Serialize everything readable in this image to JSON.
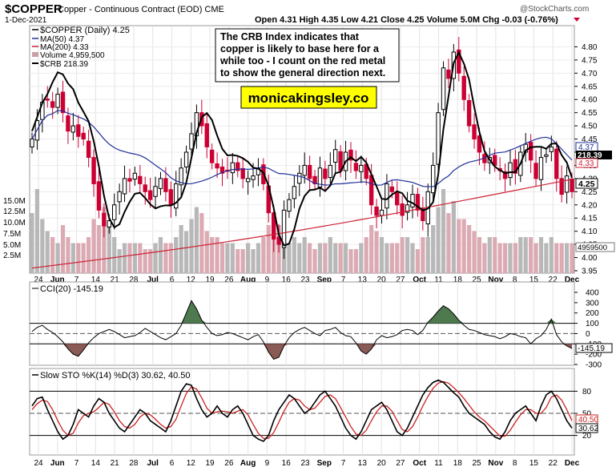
{
  "header": {
    "symbol": "$COPPER",
    "description": "Copper - Continuous Contract (EOD)  CME",
    "date": "1-Dec-2021",
    "ohlc": "Open 4.31  High 4.35  Low 4.21  Close 4.25  Volume 5.0M  Chg -0.03 (-0.76%)",
    "watermark": "@StockCharts.com"
  },
  "legend": {
    "main": "$COPPER (Daily) 4.25",
    "ma50": "MA(50) 4.37",
    "ma200": "MA(200) 4.33",
    "volume": "Volume 4,959,500",
    "crb": "$CRB 218.39"
  },
  "annotation": {
    "text": "The CRB Index indicates that copper is likely to base here for a while too - I count on the red metal to show the general direction next.",
    "line1": "The CRB Index indicates that",
    "line2": "copper is likely to base here for a",
    "line3": "while too - I count on the red metal",
    "line4": "to show the general direction next.",
    "url": "monicakingsley.co"
  },
  "colors": {
    "up": "#000000",
    "down": "#cc0033",
    "ma50": "#1f2f99",
    "ma200": "#cc2233",
    "crb": "#000000",
    "cci_pos": "#4f7a4f",
    "cci_neg": "#8a5a55",
    "sto_k": "#000000",
    "sto_d": "#cc2222",
    "highlight": "#ffff00"
  },
  "chart_data": [
    {
      "type": "candlestick",
      "title": "$COPPER (Daily) 4.25",
      "x_labels": [
        "24",
        "Jun",
        "7",
        "14",
        "21",
        "28",
        "Jul",
        "6",
        "12",
        "19",
        "26",
        "Aug",
        "9",
        "16",
        "23",
        "Sep",
        "7",
        "13",
        "20",
        "27",
        "Oct",
        "11",
        "18",
        "25",
        "Nov",
        "8",
        "15",
        "22",
        "Dec"
      ],
      "ylim": [
        3.95,
        4.85
      ],
      "y_ticks": [
        "3.95",
        "4.00",
        "4.05",
        "4.10",
        "4.15",
        "4.20",
        "4.25",
        "4.30",
        "4.35",
        "4.40",
        "4.45",
        "4.50",
        "4.55",
        "4.60",
        "4.65",
        "4.70",
        "4.75",
        "4.80"
      ],
      "close": [
        4.45,
        4.52,
        4.59,
        4.6,
        4.57,
        4.62,
        4.55,
        4.48,
        4.5,
        4.46,
        4.45,
        4.38,
        4.28,
        4.18,
        4.12,
        4.14,
        4.2,
        4.25,
        4.3,
        4.29,
        4.32,
        4.28,
        4.25,
        4.22,
        4.27,
        4.3,
        4.25,
        4.2,
        4.28,
        4.34,
        4.4,
        4.47,
        4.55,
        4.5,
        4.42,
        4.36,
        4.34,
        4.32,
        4.33,
        4.36,
        4.33,
        4.3,
        4.3,
        4.31,
        4.34,
        4.28,
        4.17,
        4.07,
        4.05,
        4.18,
        4.22,
        4.27,
        4.32,
        4.35,
        4.3,
        4.28,
        4.34,
        4.3,
        4.35,
        4.41,
        4.33,
        4.4,
        4.37,
        4.33,
        4.35,
        4.3,
        4.2,
        4.16,
        4.18,
        4.28,
        4.25,
        4.2,
        4.16,
        4.2,
        4.24,
        4.18,
        4.14,
        4.25,
        4.35,
        4.55,
        4.72,
        4.68,
        4.78,
        4.7,
        4.6,
        4.5,
        4.45,
        4.4,
        4.36,
        4.38,
        4.35,
        4.33,
        4.3,
        4.36,
        4.32,
        4.4,
        4.43,
        4.37,
        4.3,
        4.38,
        4.39,
        4.42,
        4.3,
        4.24,
        4.31,
        4.25
      ],
      "last_price_label": "4.25",
      "ma50_label": "4.37",
      "ma200_label": "4.33",
      "crb_label": "218.39",
      "volume_axis": [
        "15.0M",
        "12.5M",
        "10.0M",
        "7.5M",
        "5.0M",
        "2.5M"
      ],
      "volume_label": "4959500",
      "volume": [
        10,
        14,
        9,
        7,
        6,
        5,
        8,
        6,
        5,
        5,
        5,
        6,
        9,
        8,
        11,
        8,
        6,
        4,
        5,
        5,
        5,
        5,
        4,
        4,
        5,
        6,
        5,
        5,
        6,
        8,
        7,
        9,
        11,
        10,
        7,
        6,
        6,
        5,
        5,
        5,
        4,
        4,
        5,
        4,
        5,
        6,
        8,
        10,
        8,
        6,
        5,
        6,
        5,
        6,
        5,
        4,
        5,
        5,
        6,
        5,
        5,
        5,
        4,
        4,
        5,
        6,
        8,
        7,
        6,
        5,
        5,
        5,
        6,
        6,
        5,
        4,
        6,
        6,
        8,
        11,
        14,
        10,
        12,
        9,
        9,
        8,
        7,
        6,
        5,
        6,
        6,
        5,
        5,
        5,
        5,
        6,
        6,
        6,
        5,
        6,
        5,
        6,
        5,
        5,
        5,
        5
      ]
    },
    {
      "type": "line",
      "title": "CCI(20) -145.19",
      "ylim": [
        -300,
        400
      ],
      "y_ticks": [
        "400",
        "300",
        "200",
        "100",
        "0",
        "-100",
        "-200",
        "-300"
      ],
      "last_label": "-145.19",
      "values": [
        20,
        60,
        80,
        40,
        10,
        -30,
        -80,
        -150,
        -200,
        -220,
        -160,
        -90,
        -40,
        0,
        20,
        40,
        20,
        -10,
        -40,
        -30,
        -20,
        10,
        50,
        20,
        -10,
        -40,
        -60,
        -30,
        0,
        80,
        200,
        320,
        240,
        130,
        60,
        0,
        -20,
        -10,
        10,
        0,
        -20,
        -40,
        -60,
        -30,
        -10,
        -80,
        -180,
        -250,
        -230,
        -120,
        -40,
        10,
        40,
        60,
        30,
        0,
        -20,
        30,
        40,
        60,
        10,
        -20,
        -30,
        -90,
        -170,
        -200,
        -150,
        -60,
        -20,
        -40,
        -30,
        -10,
        30,
        40,
        30,
        -10,
        30,
        110,
        160,
        220,
        270,
        240,
        190,
        130,
        80,
        40,
        30,
        10,
        -10,
        -20,
        -30,
        -50,
        -30,
        0,
        -10,
        -30,
        -40,
        -100,
        -50,
        -20,
        40,
        140,
        -10,
        -80,
        -120,
        -145
      ]
    },
    {
      "type": "line",
      "title": "Slow STO %K(14) %D(3) 30.62, 40.50",
      "ylim": [
        0,
        100
      ],
      "y_ticks": [
        "80",
        "50",
        "20"
      ],
      "k_label": "30.62",
      "d_label": "40.50",
      "k": [
        60,
        70,
        72,
        55,
        40,
        25,
        15,
        20,
        35,
        55,
        50,
        45,
        60,
        70,
        65,
        50,
        40,
        30,
        25,
        35,
        45,
        55,
        50,
        40,
        35,
        30,
        25,
        40,
        60,
        80,
        90,
        88,
        70,
        55,
        45,
        50,
        60,
        50,
        45,
        55,
        60,
        50,
        35,
        20,
        15,
        12,
        20,
        40,
        55,
        65,
        75,
        70,
        60,
        50,
        55,
        65,
        75,
        80,
        70,
        60,
        45,
        30,
        20,
        15,
        25,
        40,
        55,
        60,
        65,
        55,
        40,
        25,
        20,
        30,
        45,
        60,
        75,
        85,
        92,
        95,
        92,
        85,
        78,
        72,
        60,
        50,
        45,
        40,
        35,
        25,
        18,
        15,
        25,
        40,
        50,
        55,
        60,
        50,
        40,
        60,
        75,
        80,
        70,
        55,
        40,
        30
      ],
      "d": [
        55,
        63,
        68,
        66,
        55,
        40,
        27,
        20,
        23,
        37,
        47,
        50,
        52,
        58,
        65,
        62,
        52,
        40,
        32,
        30,
        35,
        45,
        50,
        48,
        42,
        35,
        30,
        32,
        42,
        60,
        77,
        86,
        83,
        71,
        57,
        50,
        52,
        53,
        52,
        50,
        53,
        55,
        48,
        35,
        23,
        16,
        16,
        24,
        38,
        53,
        65,
        70,
        68,
        60,
        55,
        57,
        65,
        73,
        75,
        70,
        58,
        45,
        32,
        22,
        20,
        27,
        40,
        52,
        60,
        60,
        53,
        40,
        28,
        25,
        32,
        45,
        60,
        73,
        84,
        91,
        93,
        91,
        85,
        78,
        70,
        61,
        52,
        45,
        40,
        33,
        26,
        19,
        19,
        27,
        38,
        48,
        55,
        55,
        50,
        50,
        58,
        72,
        75,
        68,
        55,
        40
      ]
    }
  ]
}
